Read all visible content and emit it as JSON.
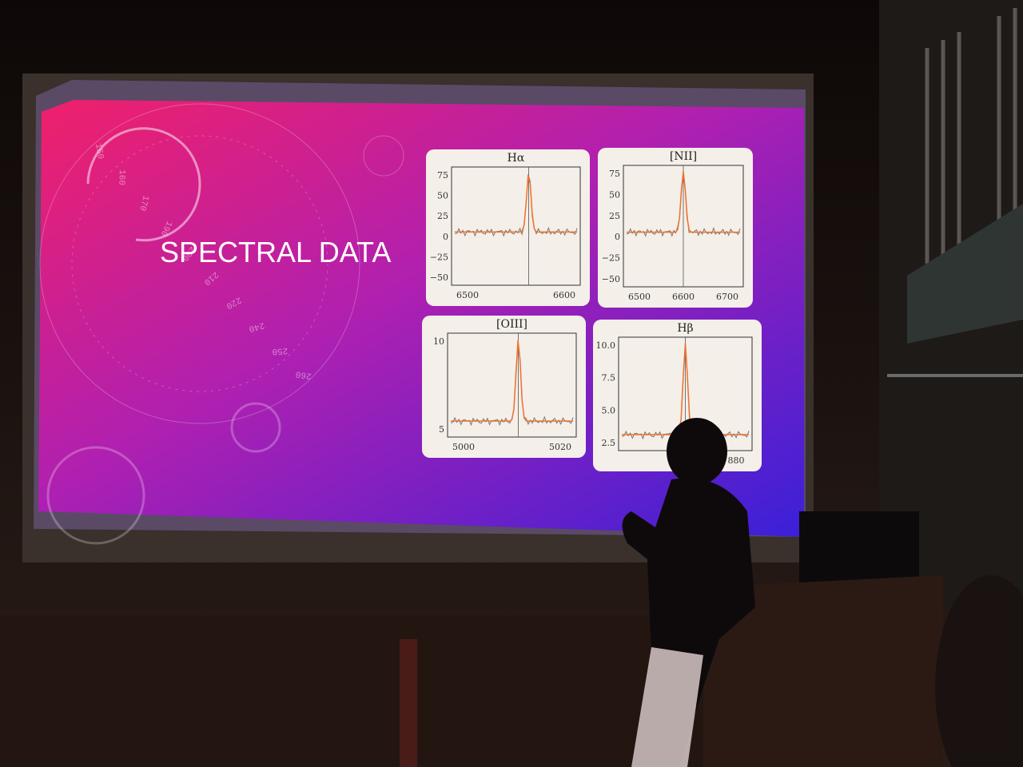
{
  "slide": {
    "title": "SPECTRAL DATA",
    "dial_labels": [
      "150",
      "160",
      "170",
      "190",
      "200",
      "210",
      "220",
      "240",
      "250",
      "260"
    ],
    "panels": [
      {
        "title": "Hα",
        "yticks": [
          "75",
          "50",
          "25",
          "0",
          "−25",
          "−50"
        ],
        "xticks": [
          "6500",
          "6600"
        ]
      },
      {
        "title": "[NII]",
        "yticks": [
          "75",
          "50",
          "25",
          "0",
          "−25",
          "−50"
        ],
        "xticks": [
          "6500",
          "6600",
          "6700"
        ]
      },
      {
        "title": "[OIII]",
        "yticks": [
          "10",
          "5"
        ],
        "xticks": [
          "5000",
          "5020"
        ]
      },
      {
        "title": "Hβ",
        "yticks": [
          "10.0",
          "7.5",
          "5.0",
          "2.5"
        ],
        "xticks": [
          "880"
        ]
      }
    ]
  }
}
